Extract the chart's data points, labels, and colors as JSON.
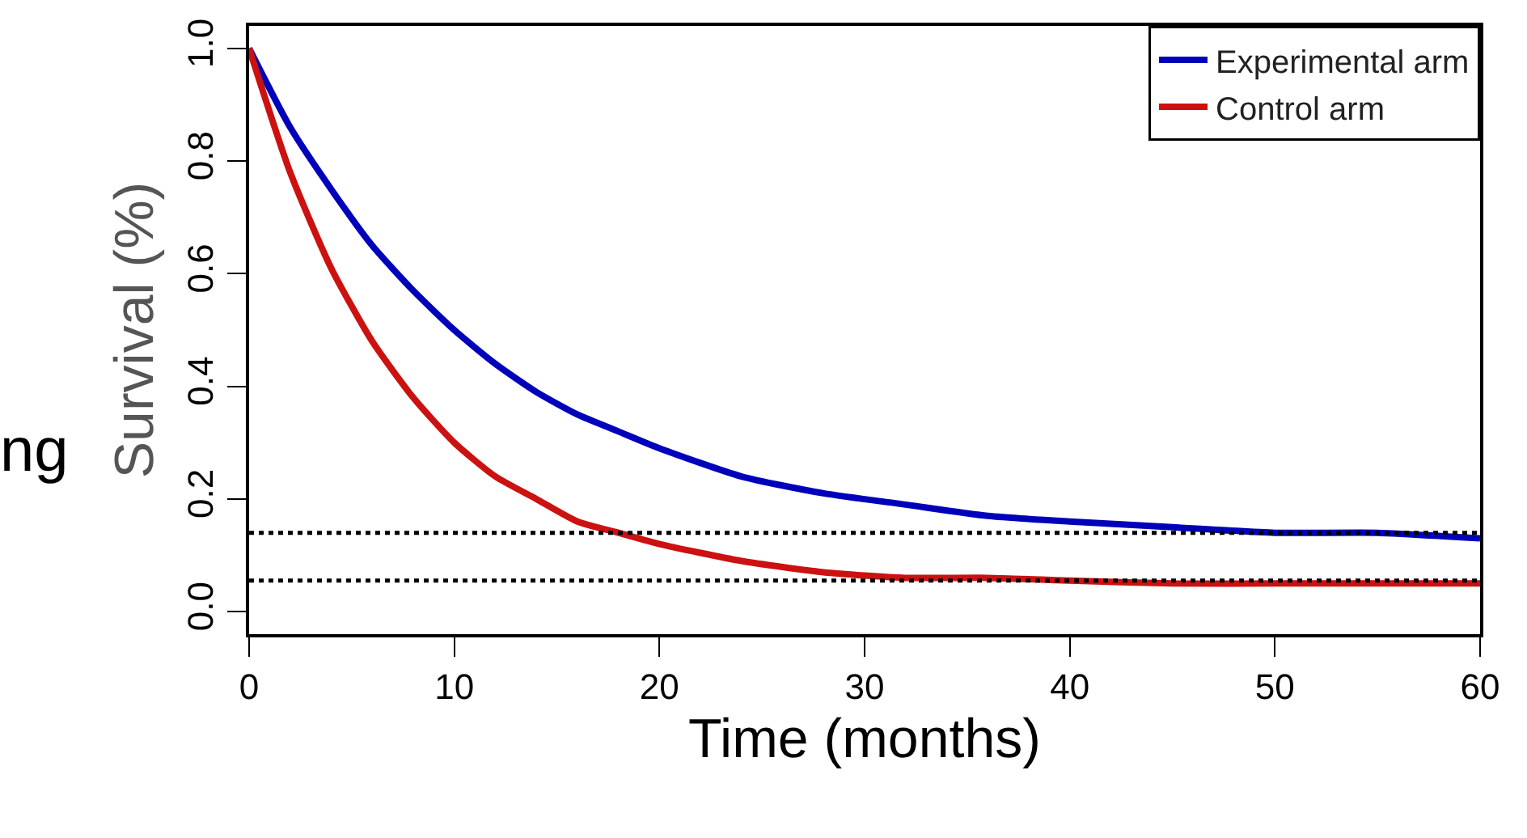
{
  "chart_data": {
    "type": "line",
    "xlabel": "Time (months)",
    "ylabel": "Survival (%)",
    "x": [
      0,
      2,
      4,
      6,
      8,
      10,
      12,
      14,
      16,
      18,
      20,
      24,
      28,
      32,
      36,
      40,
      45,
      50,
      55,
      60
    ],
    "series": [
      {
        "name": "Experimental arm",
        "color": "#0000bb",
        "values": [
          1.0,
          0.86,
          0.75,
          0.65,
          0.57,
          0.5,
          0.44,
          0.39,
          0.35,
          0.32,
          0.29,
          0.24,
          0.21,
          0.19,
          0.17,
          0.16,
          0.15,
          0.14,
          0.14,
          0.13
        ]
      },
      {
        "name": "Control arm",
        "color": "#cc1111",
        "values": [
          1.0,
          0.78,
          0.61,
          0.48,
          0.38,
          0.3,
          0.24,
          0.2,
          0.16,
          0.14,
          0.12,
          0.09,
          0.07,
          0.06,
          0.06,
          0.055,
          0.05,
          0.05,
          0.05,
          0.05
        ]
      }
    ],
    "xlim": [
      0,
      60
    ],
    "xticks": [
      0,
      10,
      20,
      30,
      40,
      50,
      60
    ],
    "ylim": [
      -0.04,
      1.04
    ],
    "yticks": [
      {
        "value": 0,
        "label": "0.0"
      },
      {
        "value": 0.2,
        "label": "0.2"
      },
      {
        "value": 0.4,
        "label": "0.4"
      },
      {
        "value": 0.6,
        "label": "0.6"
      },
      {
        "value": 0.8,
        "label": "0.8"
      },
      {
        "value": 1,
        "label": "1.0"
      }
    ],
    "ref_lines": [
      {
        "axis": "y",
        "value": 0.14,
        "label": null,
        "color": "#000000",
        "line_style": "dotted"
      },
      {
        "axis": "y",
        "value": 0.055,
        "label": null,
        "color": "#000000",
        "line_style": "dotted"
      }
    ],
    "annotations": [
      "ng"
    ],
    "legend": "top right",
    "marker": "none",
    "line_style": "solid"
  }
}
